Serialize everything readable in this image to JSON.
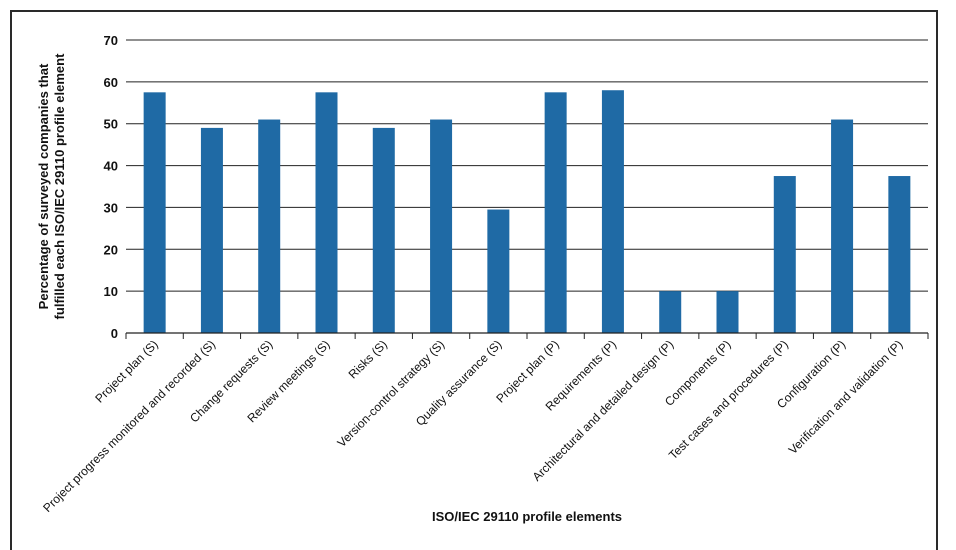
{
  "chart_data": {
    "type": "bar",
    "categories": [
      "Project plan (S)",
      "Project progress monitored and recorded (S)",
      "Change requests (S)",
      "Review meetings (S)",
      "Risks (S)",
      "Version-control strategy (S)",
      "Quality assurance (S)",
      "Project plan (P)",
      "Requirements (P)",
      "Architectural and detailed design (P)",
      "Components (P)",
      "Test cases and procedures (P)",
      "Configuration (P)",
      "Verification and validation (P)"
    ],
    "values": [
      57.5,
      49,
      51,
      57.5,
      49,
      51,
      29.5,
      57.5,
      58,
      10,
      10,
      37.5,
      51,
      37.5
    ],
    "title": "",
    "xlabel": "ISO/IEC 29110 profile elements",
    "ylabel_lines": [
      "Percentage of surveyed companies that",
      "fulfilled each ISO/IEC 29110 profile element"
    ],
    "ylim": [
      0,
      70
    ],
    "yticks": [
      0,
      10,
      20,
      30,
      40,
      50,
      60,
      70
    ],
    "grid": true,
    "bar_color": "#1f6aa5"
  }
}
